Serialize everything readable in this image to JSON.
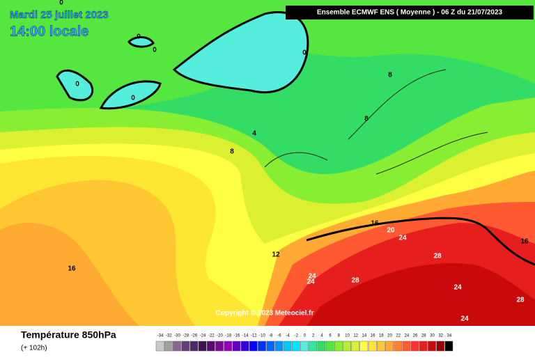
{
  "header": {
    "date": "Mardi 25 juillet 2023",
    "time": "14:00 locale",
    "model": "Ensemble ECMWF ENS  ( Moyenne )  -  06 Z du 21/07/2023"
  },
  "map": {
    "contour_labels": [
      0,
      0,
      0,
      0,
      0,
      0,
      8,
      8,
      4,
      8,
      16,
      12,
      16,
      20,
      24,
      24,
      24,
      28,
      28,
      24,
      24,
      28,
      16
    ],
    "copyright": "Copyright © 2023 Meteociel.fr"
  },
  "footer": {
    "title": "Température 850hPa",
    "subtitle": "(+ 102h)"
  },
  "legend": {
    "values": [
      -34,
      -32,
      -30,
      -28,
      -26,
      -24,
      -22,
      -20,
      -18,
      -16,
      -14,
      -12,
      -10,
      -8,
      -6,
      -4,
      -2,
      0,
      2,
      4,
      6,
      8,
      10,
      12,
      14,
      16,
      18,
      20,
      22,
      24,
      26,
      28,
      30,
      32,
      34
    ],
    "colors": [
      "#c8c8c8",
      "#a0a0a0",
      "#8c6496",
      "#643c78",
      "#502864",
      "#3c1450",
      "#5a0a6e",
      "#780a96",
      "#9600b4",
      "#6400c8",
      "#3200dc",
      "#0000ff",
      "#0032ff",
      "#0064ff",
      "#0096ff",
      "#00c8ff",
      "#00e6ff",
      "#55eedd",
      "#33e6a0",
      "#33dc64",
      "#55e640",
      "#88ee33",
      "#b4f032",
      "#dcf032",
      "#ffff44",
      "#ffe632",
      "#ffc832",
      "#ffaa32",
      "#ff8232",
      "#ff5a32",
      "#ff3232",
      "#e61e1e",
      "#c80a0a",
      "#960000",
      "#000000"
    ]
  }
}
